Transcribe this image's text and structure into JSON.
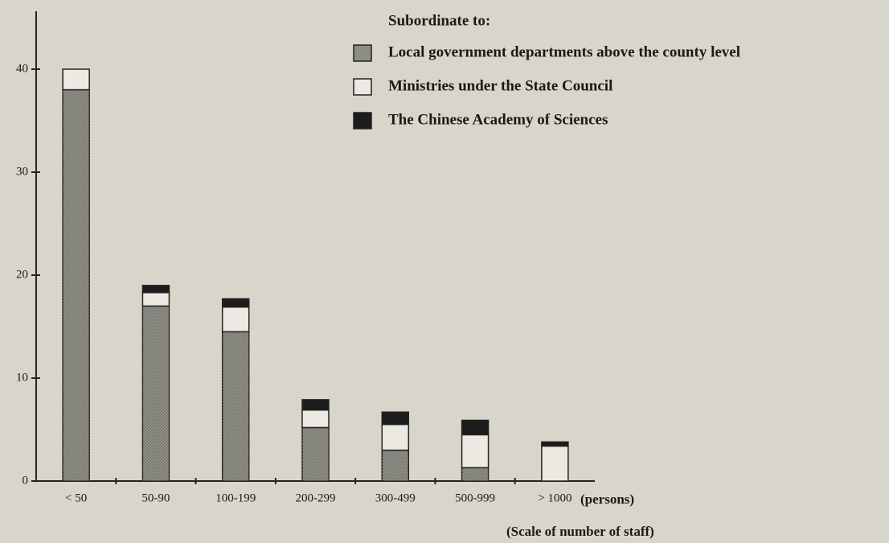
{
  "chart_data": {
    "type": "stacked_bar",
    "legend_title": "Subordinate to:",
    "x_label": "(persons)",
    "x_title": "(Scale of number of staff)",
    "categories": [
      "< 50",
      "50-90",
      "100-199",
      "200-299",
      "300-499",
      "500-999",
      "> 1000"
    ],
    "series": [
      {
        "name": "Local government departments above the county level",
        "color": "#8e8d86",
        "values": [
          38,
          17,
          14.5,
          5.2,
          3,
          1.3,
          0
        ]
      },
      {
        "name": "Ministries under the State Council",
        "color": "#ebe9e1",
        "values": [
          2,
          1.3,
          2.4,
          1.7,
          2.5,
          3.2,
          3.4
        ]
      },
      {
        "name": "The Chinese Academy of Sciences",
        "color": "#1c1c1c",
        "values": [
          0,
          0.7,
          0.8,
          1,
          1.2,
          1.4,
          0.4
        ]
      }
    ],
    "ylim": [
      0,
      45
    ],
    "yticks": [
      0,
      10,
      20,
      30,
      40
    ]
  }
}
